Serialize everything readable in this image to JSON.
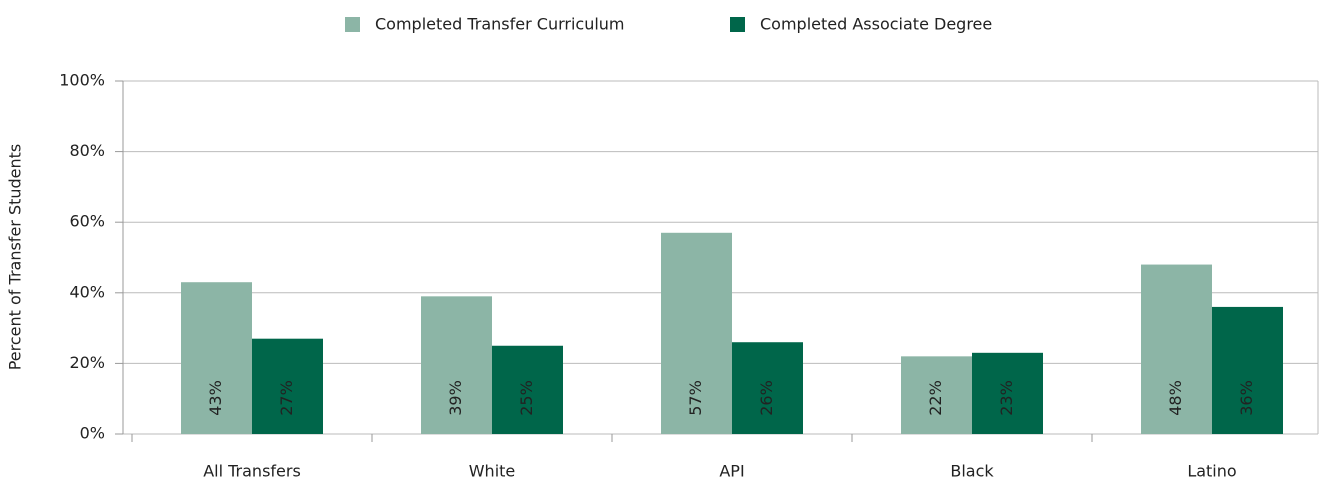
{
  "chart_data": {
    "type": "bar",
    "categories": [
      "All Transfers",
      "White",
      "API",
      "Black",
      "Latino"
    ],
    "series": [
      {
        "name": "Completed Transfer Curriculum",
        "color": "#8cb5a6",
        "values": [
          43,
          39,
          57,
          22,
          48
        ],
        "value_labels": [
          "43%",
          "39%",
          "57%",
          "22%",
          "48%"
        ]
      },
      {
        "name": "Completed Associate Degree",
        "color": "#00664a",
        "values": [
          27,
          25,
          26,
          23,
          36
        ],
        "value_labels": [
          "27%",
          "25%",
          "26%",
          "23%",
          "36%"
        ]
      }
    ],
    "y_label": "Percent of Transfer Students",
    "ylim": [
      0,
      100
    ],
    "yticks": [
      {
        "value": 0,
        "label": "0%"
      },
      {
        "value": 20,
        "label": "20%"
      },
      {
        "value": 40,
        "label": "40%"
      },
      {
        "value": 60,
        "label": "60%"
      },
      {
        "value": 80,
        "label": "80%"
      },
      {
        "value": 100,
        "label": "100%"
      }
    ],
    "grid": true,
    "legend": "top"
  }
}
